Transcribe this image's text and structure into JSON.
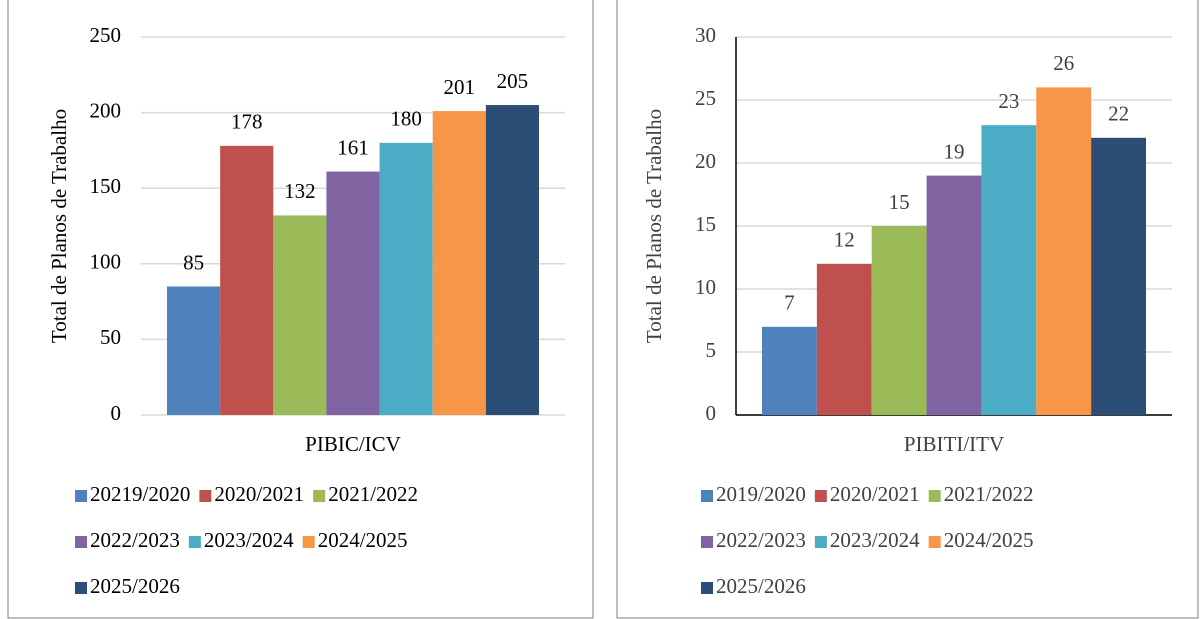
{
  "chart_data": [
    {
      "type": "bar",
      "ylabel": "Total de Planos de Trabalho",
      "categories": [
        "PIBIC/ICV"
      ],
      "series": [
        {
          "name": "20219/2020",
          "color": "#4f81bd",
          "values": [
            85
          ]
        },
        {
          "name": "2020/2021",
          "color": "#c0504d",
          "values": [
            178
          ]
        },
        {
          "name": "2021/2022",
          "color": "#9bbb59",
          "values": [
            132
          ]
        },
        {
          "name": "2022/2023",
          "color": "#8064a2",
          "values": [
            161
          ]
        },
        {
          "name": "2023/2024",
          "color": "#4bacc6",
          "values": [
            180
          ]
        },
        {
          "name": "2024/2025",
          "color": "#f79646",
          "values": [
            201
          ]
        },
        {
          "name": "2025/2026",
          "color": "#2c4d75",
          "values": [
            205
          ]
        }
      ],
      "ylim": [
        0,
        250
      ],
      "yticks": [
        0,
        50,
        100,
        150,
        200,
        250
      ],
      "grid": true,
      "legend": "bottom"
    },
    {
      "type": "bar",
      "ylabel": "Total de Planos de Trabalho",
      "categories": [
        "PIBITI/ITV"
      ],
      "series": [
        {
          "name": "2019/2020",
          "color": "#4f81bd",
          "values": [
            7
          ]
        },
        {
          "name": "2020/2021",
          "color": "#c0504d",
          "values": [
            12
          ]
        },
        {
          "name": "2021/2022",
          "color": "#9bbb59",
          "values": [
            15
          ]
        },
        {
          "name": "2022/2023",
          "color": "#8064a2",
          "values": [
            19
          ]
        },
        {
          "name": "2023/2024",
          "color": "#4bacc6",
          "values": [
            23
          ]
        },
        {
          "name": "2024/2025",
          "color": "#f79646",
          "values": [
            26
          ]
        },
        {
          "name": "2025/2026",
          "color": "#2c4d75",
          "values": [
            22
          ]
        }
      ],
      "ylim": [
        0,
        30
      ],
      "yticks": [
        0,
        5,
        10,
        15,
        20,
        25,
        30
      ],
      "grid": true,
      "legend": "bottom"
    }
  ]
}
